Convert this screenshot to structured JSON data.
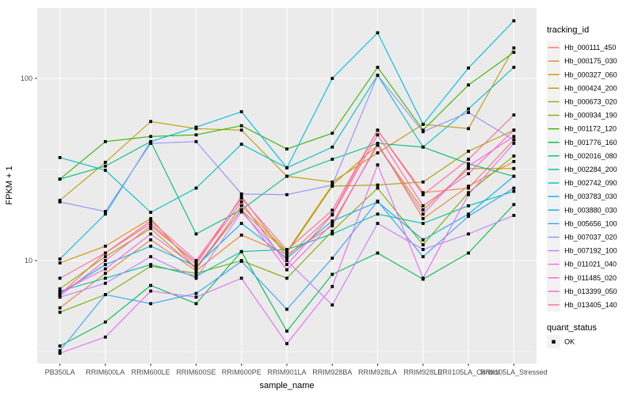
{
  "figure": {
    "background": "#FFFFFF",
    "panel_background": "#EBEBEB",
    "grid_color": "#FFFFFF",
    "tick_color": "#333333",
    "tick_label_color": "#4D4D4D",
    "point_color": "#000000",
    "legend_key_background": "#F2F2F2"
  },
  "chart": {
    "xlabel": "sample_name",
    "ylabel": "FPKM + 1",
    "legend_title": "tracking_id",
    "quant_legend_title": "quant_status",
    "quant_legend_item": "OK"
  },
  "chart_data": {
    "type": "line",
    "x_type": "categorical",
    "y_scale": "log10",
    "ylim": [
      2.7,
      250
    ],
    "y_ticks": [
      10,
      100
    ],
    "y_minor_gridlines": [
      3.162,
      31.62
    ],
    "grid": true,
    "legend_position": "right",
    "marker": "black-square",
    "categories": [
      "PB350LA",
      "RRIM600LA",
      "RRIM600LE",
      "RRIM600SE",
      "RRIM600PE",
      "RRIM901LA",
      "RRIM928BA",
      "RRIM928LA",
      "RRIM928LE",
      "RRII105LA_Control",
      "RRII105LA_Stressed"
    ],
    "series": [
      {
        "name": "Hb_000111_450",
        "color": "#F8766D",
        "values": [
          6.5,
          11,
          16,
          9.5,
          22.5,
          10.5,
          18,
          52,
          23.6,
          25,
          46
        ]
      },
      {
        "name": "Hb_000175_030",
        "color": "#EA8331",
        "values": [
          5.5,
          8.5,
          13,
          8.8,
          13.8,
          10.8,
          15.5,
          44,
          17,
          25.6,
          35
        ]
      },
      {
        "name": "Hb_000327_060",
        "color": "#D89000",
        "values": [
          9.7,
          12,
          17,
          9,
          20,
          11.2,
          26,
          43,
          19,
          32,
          32
        ]
      },
      {
        "name": "Hb_000424_200",
        "color": "#C09B00",
        "values": [
          21.4,
          34.6,
          58,
          53,
          52,
          29,
          27,
          39,
          56,
          53,
          147
        ]
      },
      {
        "name": "Hb_000673_020",
        "color": "#A3A500",
        "values": [
          7,
          10.5,
          15,
          9,
          19,
          11,
          25.6,
          26,
          27,
          39.8,
          52
        ]
      },
      {
        "name": "Hb_000934_190",
        "color": "#7CAE00",
        "values": [
          5.2,
          6.5,
          9.3,
          8.5,
          10,
          8,
          14.5,
          25,
          12.2,
          23.6,
          37.5
        ]
      },
      {
        "name": "Hb_001172_120",
        "color": "#39B600",
        "values": [
          28,
          45,
          48,
          49,
          55,
          41,
          50,
          115,
          52,
          92,
          139
        ]
      },
      {
        "name": "Hb_001776_160",
        "color": "#00BB4E",
        "values": [
          3.4,
          4.6,
          7.3,
          5.8,
          11.2,
          4.1,
          8.4,
          11,
          7.9,
          11,
          20.3
        ]
      },
      {
        "name": "Hb_002016_080",
        "color": "#00BF7D",
        "values": [
          28,
          33,
          45,
          14,
          19,
          29,
          36,
          44,
          42,
          34,
          29
        ]
      },
      {
        "name": "Hb_002284_200",
        "color": "#00C1A3",
        "values": [
          6.8,
          8,
          9.5,
          8.2,
          11.2,
          11.5,
          14,
          18,
          16,
          20,
          24
        ]
      },
      {
        "name": "Hb_002742_090",
        "color": "#00BFC4",
        "values": [
          36.8,
          31.3,
          18.4,
          25,
          43.5,
          32.3,
          42,
          104,
          42,
          68,
          115
        ]
      },
      {
        "name": "Hb_003783_030",
        "color": "#00BAE0",
        "values": [
          10.2,
          18,
          45,
          54,
          65.6,
          32.3,
          100,
          178,
          56,
          114,
          207
        ]
      },
      {
        "name": "Hb_003880_030",
        "color": "#00B0F6",
        "values": [
          6.6,
          9.5,
          12,
          9.3,
          16,
          10.3,
          16.5,
          21,
          13,
          18,
          29
        ]
      },
      {
        "name": "Hb_005656_100",
        "color": "#35A2FF",
        "values": [
          3.2,
          6.5,
          5.8,
          6.6,
          9.9,
          5.4,
          10.3,
          21.2,
          10.5,
          17.5,
          25
        ]
      },
      {
        "name": "Hb_007037_020",
        "color": "#9590FF",
        "values": [
          21,
          18.6,
          44,
          45,
          23.2,
          23,
          26,
          104,
          51,
          65,
          46
        ]
      },
      {
        "name": "Hb_007192_100",
        "color": "#C77CFF",
        "values": [
          6.3,
          7.5,
          10.5,
          8,
          18.5,
          10,
          5.7,
          16,
          11.5,
          14,
          17.7
        ]
      },
      {
        "name": "Hb_011021_040",
        "color": "#E76BF3",
        "values": [
          3.1,
          3.8,
          6.8,
          6.3,
          8,
          3.5,
          7.2,
          33.5,
          8,
          23,
          44
        ]
      },
      {
        "name": "Hb_011485_020",
        "color": "#FA62DB",
        "values": [
          6.7,
          9,
          14,
          9.2,
          19,
          8.9,
          16,
          43,
          18,
          33,
          48
        ]
      },
      {
        "name": "Hb_013399_050",
        "color": "#FF62BC",
        "values": [
          6.4,
          10,
          15.5,
          9.8,
          21,
          9.5,
          17.8,
          49,
          20,
          30,
          52
        ]
      },
      {
        "name": "Hb_013405_140",
        "color": "#FF6A98",
        "values": [
          8,
          11,
          16.5,
          10,
          22,
          11.4,
          18.9,
          52,
          23,
          36,
          63
        ]
      }
    ]
  }
}
